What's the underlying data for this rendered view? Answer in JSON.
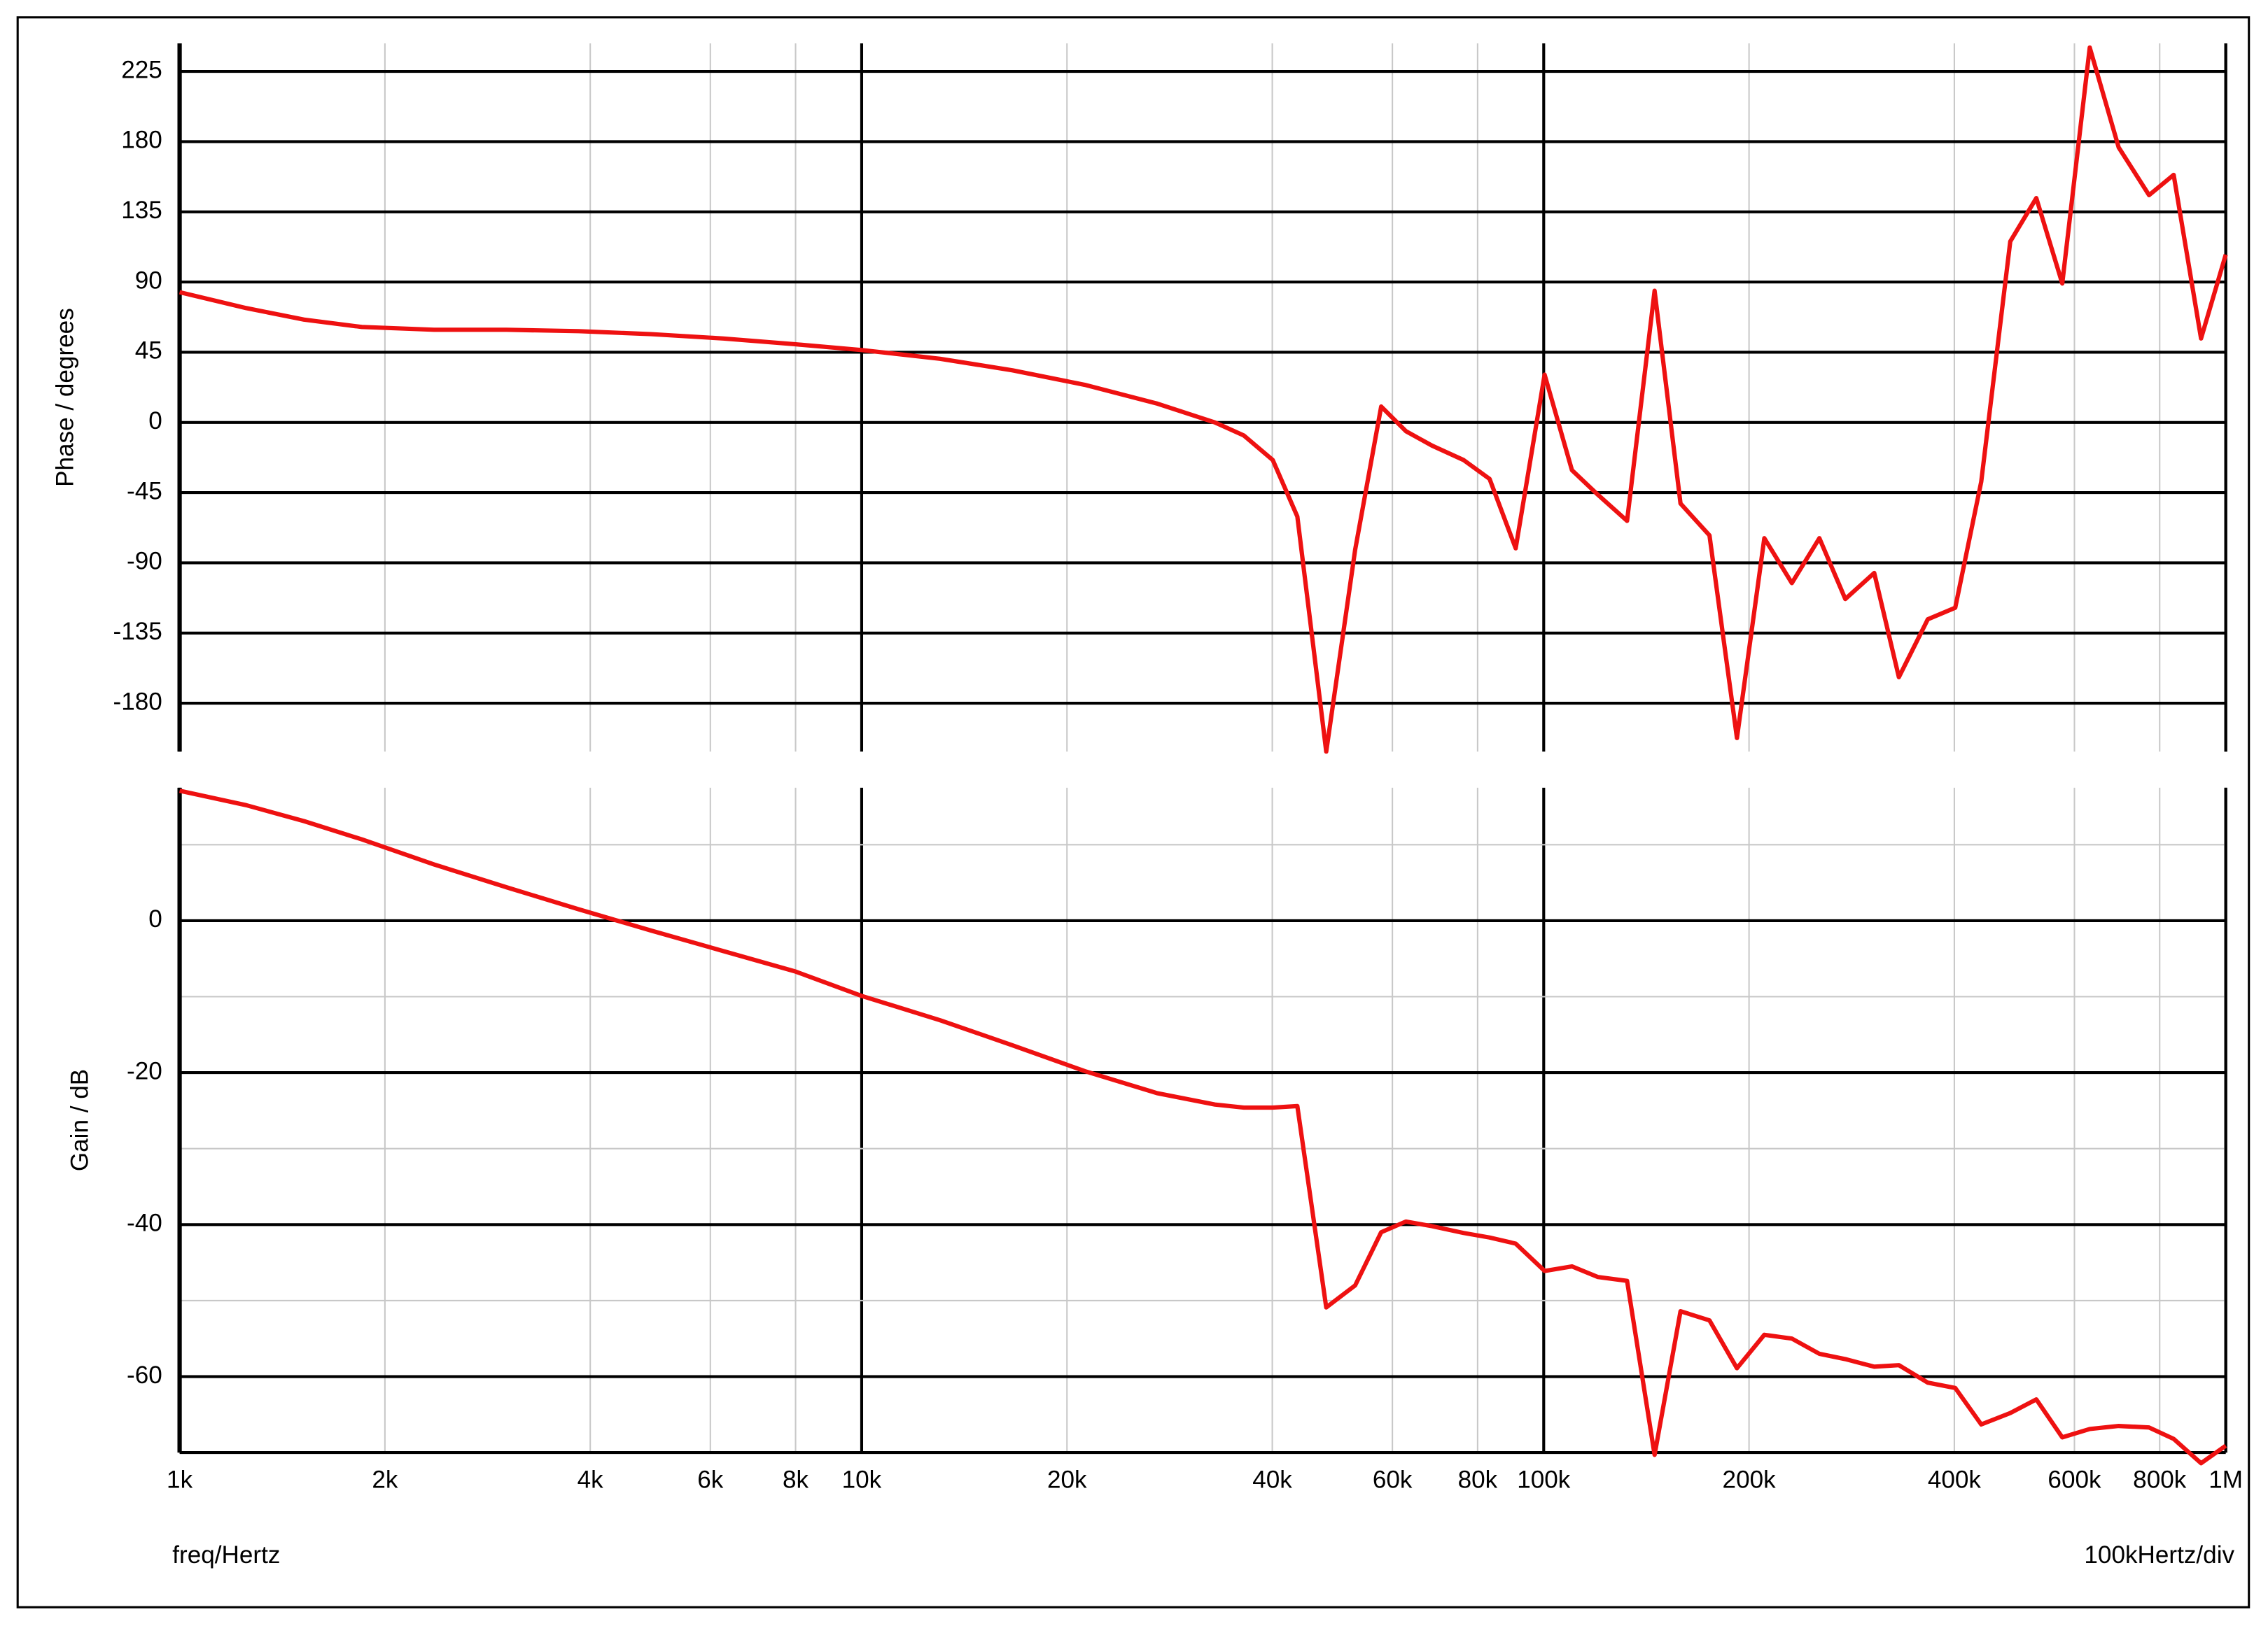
{
  "chart_data": [
    {
      "type": "line",
      "ylabel": "Phase / degrees",
      "xscale": "log",
      "grid": true,
      "xlim": [
        1000,
        1000000
      ],
      "ylim": [
        -211,
        243
      ],
      "yticks": [
        -180,
        -135,
        -90,
        -45,
        0,
        45,
        90,
        135,
        180,
        225
      ],
      "xgrid": [
        1000,
        2000,
        4000,
        6000,
        8000,
        10000,
        20000,
        40000,
        60000,
        80000,
        100000,
        200000,
        400000,
        600000,
        800000,
        1000000
      ],
      "x": [
        1000,
        1252,
        1522,
        1850,
        2361,
        3014,
        3847,
        4911,
        6269,
        8002,
        10000,
        13030,
        16640,
        21240,
        27110,
        32960,
        36340,
        40060,
        43530,
        47990,
        52910,
        57770,
        62790,
        68540,
        76300,
        83300,
        90970,
        100300,
        110000,
        120100,
        132500,
        145400,
        158700,
        175000,
        192000,
        210600,
        231100,
        253600,
        276800,
        305200,
        331700,
        365700,
        401200,
        438000,
        483100,
        527500,
        575800,
        631800,
        696600,
        771900,
        838700,
        920000,
        1000000
      ],
      "series": [
        {
          "color": "#ee1111",
          "values": [
            83.5,
            73.3,
            65.9,
            61.2,
            59.4,
            59.4,
            58.5,
            56.6,
            53.8,
            50.1,
            46.4,
            40.8,
            33.4,
            24.1,
            12.1,
            0,
            -8.4,
            -24.1,
            -60.3,
            -211,
            -81.6,
            10.2,
            -5.6,
            -14.8,
            -24.1,
            -36.2,
            -80.7,
            30.6,
            -30.6,
            -46.4,
            -63.1,
            84.4,
            -52,
            -72.4,
            -202.3,
            -74.2,
            -103,
            -74.2,
            -113.2,
            -96.5,
            -163.3,
            -126.2,
            -118.8,
            -38,
            116,
            143.8,
            89.1,
            240.3,
            176.3,
            145.7,
            158.7,
            53.8,
            107.6
          ]
        }
      ]
    },
    {
      "type": "line",
      "ylabel": "Gain / dB",
      "xlabel": "freq/Hertz",
      "annotation": "100kHertz/div",
      "xscale": "log",
      "grid": true,
      "xlim": [
        1000,
        1000000
      ],
      "ylim": [
        -70,
        17.5
      ],
      "yticks": [
        -60,
        -40,
        -20,
        0
      ],
      "ygrid_minor": [
        10,
        -10,
        -30,
        -50
      ],
      "xticks": [
        {
          "value": 1000,
          "label": "1k"
        },
        {
          "value": 2000,
          "label": "2k"
        },
        {
          "value": 4000,
          "label": "4k"
        },
        {
          "value": 6000,
          "label": "6k"
        },
        {
          "value": 8000,
          "label": "8k"
        },
        {
          "value": 10000,
          "label": "10k"
        },
        {
          "value": 20000,
          "label": "20k"
        },
        {
          "value": 40000,
          "label": "40k"
        },
        {
          "value": 60000,
          "label": "60k"
        },
        {
          "value": 80000,
          "label": "80k"
        },
        {
          "value": 100000,
          "label": "100k"
        },
        {
          "value": 200000,
          "label": "200k"
        },
        {
          "value": 400000,
          "label": "400k"
        },
        {
          "value": 600000,
          "label": "600k"
        },
        {
          "value": 800000,
          "label": "800k"
        },
        {
          "value": 1000000,
          "label": "1M"
        }
      ],
      "x": [
        1000,
        1252,
        1522,
        1850,
        2361,
        3014,
        3847,
        4911,
        6269,
        8002,
        10000,
        13030,
        16640,
        21240,
        27110,
        32960,
        36340,
        40060,
        43530,
        47990,
        52910,
        57770,
        62790,
        68540,
        76300,
        83300,
        90970,
        100300,
        110000,
        120100,
        132500,
        145400,
        158700,
        175000,
        192000,
        210600,
        231100,
        253600,
        276800,
        305200,
        331700,
        365700,
        401200,
        438000,
        483100,
        527500,
        575800,
        631800,
        696600,
        771900,
        838700,
        920000,
        1000000
      ],
      "series": [
        {
          "color": "#ee1111",
          "values": [
            17.1,
            15.2,
            13.1,
            10.7,
            7.4,
            4.4,
            1.5,
            -1.3,
            -4,
            -6.7,
            -9.9,
            -13.1,
            -16.4,
            -19.8,
            -22.7,
            -24.2,
            -24.6,
            -24.6,
            -24.4,
            -50.9,
            -48,
            -41,
            -39.6,
            -40.2,
            -41.1,
            -41.7,
            -42.5,
            -46.1,
            -45.5,
            -46.9,
            -47.4,
            -70.3,
            -51.4,
            -52.6,
            -58.9,
            -54.5,
            -55,
            -57,
            -57.7,
            -58.7,
            -58.5,
            -60.8,
            -61.5,
            -66.3,
            -64.8,
            -63,
            -68,
            -66.9,
            -66.5,
            -66.7,
            -68.2,
            -71.4,
            -69.1
          ]
        }
      ]
    }
  ]
}
